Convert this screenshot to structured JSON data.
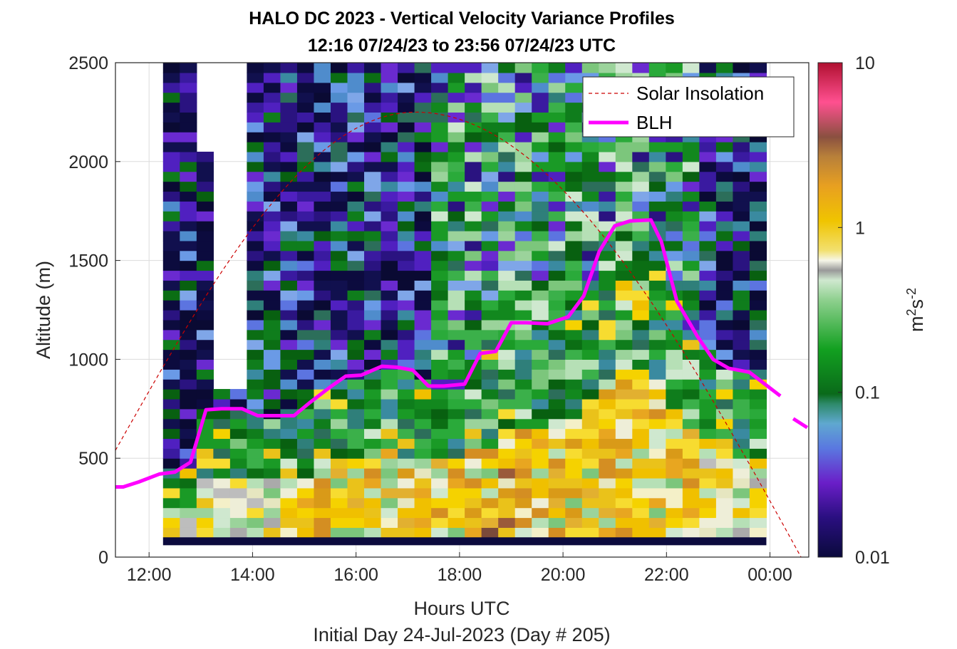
{
  "chart_data": {
    "type": "heatmap",
    "title_line1": "HALO DC 2023 - Vertical Velocity Variance Profiles",
    "title_line2": "12:16 07/24/23 to 23:56 07/24/23  UTC",
    "xlabel": "Hours UTC",
    "xlabel2": "Initial Day 24-Jul-2023 (Day # 205)",
    "ylabel": "Altitude (m)",
    "xlim": [
      11.35,
      24.75
    ],
    "ylim": [
      0,
      2500
    ],
    "x_ticks": [
      12,
      14,
      16,
      18,
      20,
      22,
      24
    ],
    "x_tick_labels": [
      "12:00",
      "14:00",
      "16:00",
      "18:00",
      "20:00",
      "22:00",
      "00:00"
    ],
    "y_ticks": [
      0,
      500,
      1000,
      1500,
      2000,
      2500
    ],
    "y_tick_labels": [
      "0",
      "500",
      "1000",
      "1500",
      "2000",
      "2500"
    ],
    "grid": true,
    "data_time_range": [
      12.27,
      23.93
    ],
    "data_alt_range": [
      100,
      2500
    ],
    "colorbar": {
      "label_base": "m",
      "label_sup1": "2",
      "label_mid": "s",
      "label_sup2": "-2",
      "scale": "log",
      "range": [
        0.01,
        10
      ],
      "ticks": [
        0.01,
        0.1,
        1,
        10
      ],
      "tick_labels": [
        "0.01",
        "0.1",
        "1",
        "10"
      ]
    },
    "legend": {
      "placement": "top-right",
      "entries": [
        {
          "label": "Solar Insolation",
          "color": "#cc0000",
          "style": "dashed"
        },
        {
          "label": "BLH",
          "color": "#ff00ff",
          "style": "solid"
        }
      ]
    },
    "series": [
      {
        "name": "BLH",
        "color": "#ff00ff",
        "x": [
          11.35,
          11.5,
          11.8,
          12.2,
          12.5,
          12.8,
          13.1,
          13.4,
          13.8,
          14.1,
          14.5,
          14.8,
          15.1,
          15.5,
          15.8,
          16.1,
          16.5,
          16.8,
          17.1,
          17.4,
          17.7,
          18.1,
          18.4,
          18.7,
          19.0,
          19.3,
          19.7,
          20.1,
          20.4,
          20.7,
          21.0,
          21.3,
          21.7,
          21.9,
          22.2,
          22.6,
          22.9,
          23.2,
          23.6,
          23.9,
          24.2
        ],
        "y": [
          355,
          355,
          380,
          420,
          430,
          480,
          745,
          750,
          750,
          715,
          715,
          715,
          780,
          860,
          915,
          920,
          965,
          960,
          945,
          865,
          865,
          875,
          1030,
          1040,
          1185,
          1185,
          1180,
          1215,
          1320,
          1545,
          1675,
          1700,
          1705,
          1595,
          1295,
          1115,
          1000,
          955,
          935,
          875,
          815
        ]
      },
      {
        "name": "BLH-extension",
        "color": "#ff00ff",
        "x": [
          24.45,
          24.72
        ],
        "y": [
          700,
          655
        ]
      },
      {
        "name": "Solar Insolation",
        "color": "#cc0000",
        "shape": "cosine",
        "x_start": 11.35,
        "x_peak": 17.15,
        "x_end": 24.6,
        "y_start": 540,
        "y_peak": 2250
      }
    ]
  }
}
